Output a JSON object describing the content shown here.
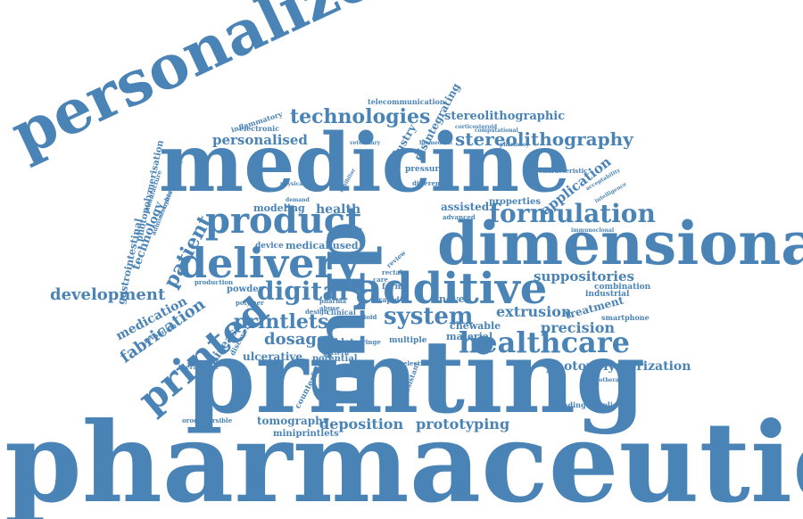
{
  "theme": {
    "word_color": "#4a83b5",
    "background": "#ffffff"
  },
  "words": {
    "pharmaceutical": "pharmaceutical",
    "printing": "printing",
    "medicine": "medicine",
    "personalized": "personalized",
    "drug": "drug",
    "dimensional": "dimensional",
    "additive": "additive",
    "delivery": "delivery",
    "product": "product",
    "printed": "printed",
    "healthcare": "healthcare",
    "formulation": "formulation",
    "technologies": "technologies",
    "stereolithography": "stereolithography",
    "stereolithographic": "stereolithographic",
    "digital": "digital",
    "system": "system",
    "printlets": "printlets",
    "patient": "patient",
    "development": "development",
    "fabrication": "fabrication",
    "medication": "medication",
    "personalised": "personalised",
    "photopolymerization": "photopolymerization",
    "suppositories": "suppositories",
    "extrusion": "extrusion",
    "precision": "precision",
    "deposition": "deposition",
    "prototyping": "prototyping",
    "tomography": "tomography",
    "miniprintlets": "miniprintlets",
    "dosage": "dosage",
    "disease": "disease",
    "technology": "technology",
    "application": "application",
    "gastrointestinal": "gastrointestinal",
    "photopolymerisation": "photopolymerisation",
    "industry": "industry",
    "disintegrating": "disintegrating",
    "telecommunication": "telecommunication",
    "electronic": "electronic",
    "inflammatory": "inflammatory",
    "modeling": "modeling",
    "health": "health",
    "assisted": "assisted",
    "properties": "properties",
    "novel": "novel",
    "chewable": "chewable",
    "material": "material",
    "treatment": "treatment",
    "combination": "combination",
    "industrial": "industrial",
    "smartphone": "smartphone",
    "ulcerative": "ulcerative",
    "potential": "potential",
    "counterfeit": "counterfeit",
    "readingcompliance": "readingcompliance",
    "chronotherapy": "chronotherapy",
    "orodispersible": "orodispersible",
    "medical": "medical",
    "fused": "fused",
    "device": "device",
    "powder": "powder",
    "polymer": "polymer",
    "production": "production",
    "tablet": "tablet",
    "pattern": "pattern",
    "multiple": "multiple",
    "syringe": "syringe",
    "opioid": "opioid",
    "clinical": "clinical",
    "design": "design",
    "revolution": "revolution",
    "discovery": "discovery",
    "therapeutic": "therapeutic",
    "pressure": "pressure",
    "different": "different",
    "characteristic": "characteristic",
    "immunoclonal": "immunoclonal",
    "advanced": "advanced",
    "rapid": "rapid",
    "form": "form",
    "rectal": "rectal",
    "selective": "selective",
    "resistant": "resistant",
    "veterinary": "veterinary",
    "biomedical": "biomedical",
    "pharmacy": "pharmacy",
    "computational": "computational",
    "corticosteroid": "corticosteroid",
    "demand": "demand",
    "physical": "physical",
    "inhibitor": "inhibitor",
    "administration": "administration",
    "manufacture": "manufacture",
    "cybermedicine": "cybermedicine",
    "abuse": "abuse",
    "pharma": "pharma",
    "care": "care",
    "review": "review",
    "acceptability": "acceptability",
    "intelligence": "intelligence"
  }
}
